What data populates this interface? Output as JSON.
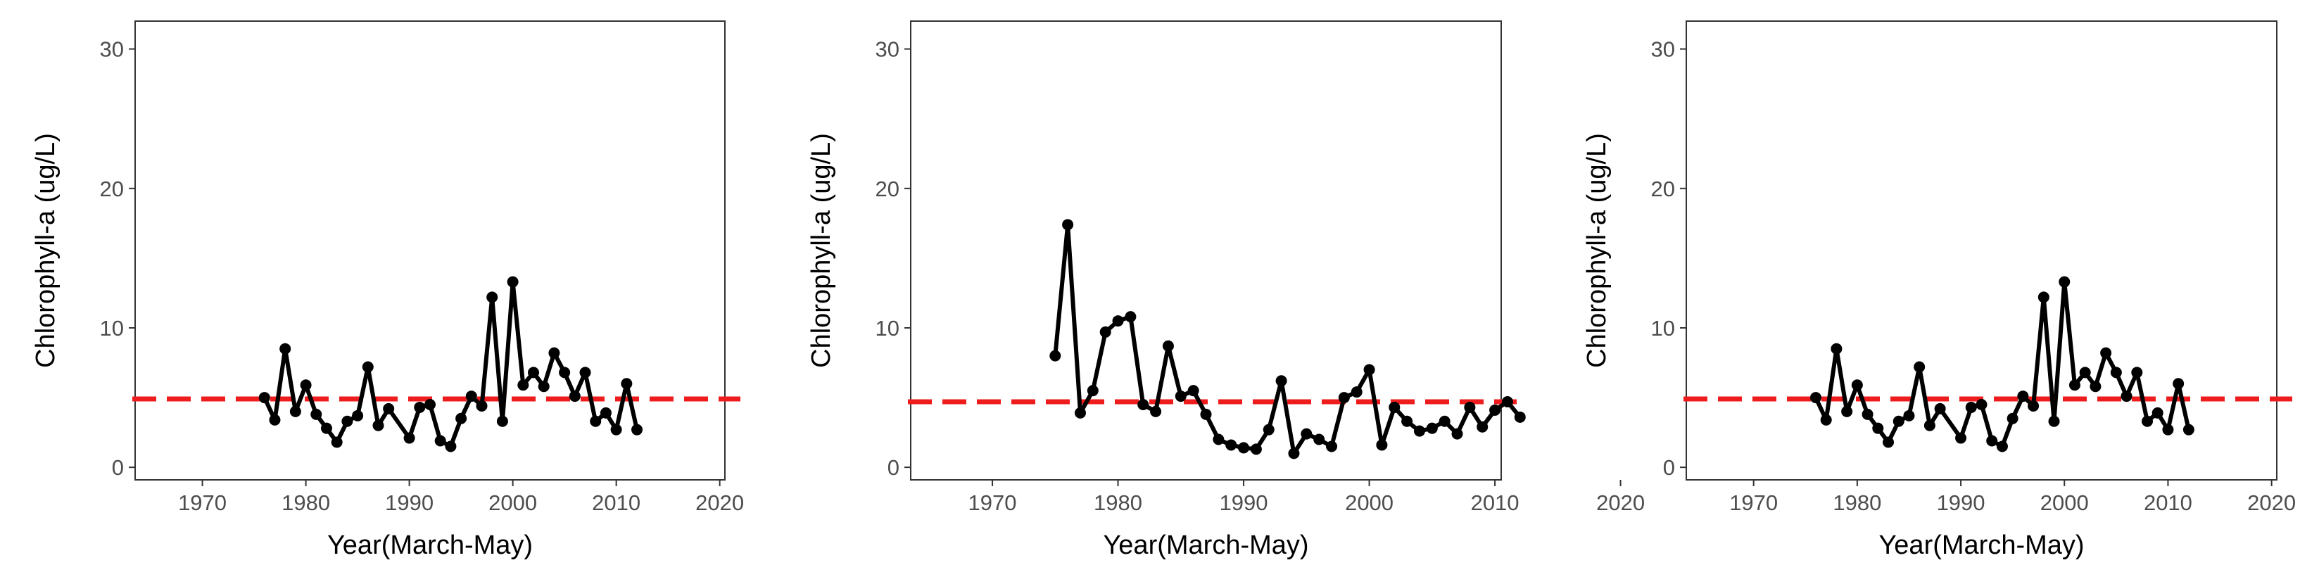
{
  "colors": {
    "series": "#000000",
    "threshold": "#ee1c1c",
    "axis_text": "#4d4d4d",
    "title_text": "#000000"
  },
  "chart_data": [
    {
      "type": "line",
      "xlabel": "Year(March-May)",
      "ylabel": "Chlorophyll-a (ug/L)",
      "xlim": [
        1963.5,
        2020.5
      ],
      "ylim": [
        -0.9,
        32
      ],
      "x_ticks": [
        1970,
        1980,
        1990,
        2000,
        2010,
        2020
      ],
      "y_ticks": [
        0,
        10,
        20,
        30
      ],
      "grid": false,
      "reference_line": 4.9,
      "series": [
        {
          "x": [
            1976,
            1977,
            1978,
            1979,
            1980,
            1981,
            1982,
            1983,
            1984,
            1985,
            1986,
            1987,
            1988,
            1990,
            1991,
            1992,
            1993,
            1994,
            1995,
            1996,
            1997,
            1998,
            1999,
            2000,
            2001,
            2002,
            2003,
            2004,
            2005,
            2006,
            2007,
            2008,
            2009,
            2010,
            2011,
            2012
          ],
          "y": [
            5.0,
            3.4,
            8.5,
            4.0,
            5.9,
            3.8,
            2.8,
            1.8,
            3.3,
            3.7,
            7.2,
            3.0,
            4.2,
            2.1,
            4.3,
            4.5,
            1.9,
            1.5,
            3.5,
            5.1,
            4.4,
            12.2,
            3.3,
            13.3,
            5.9,
            6.8,
            5.8,
            8.2,
            6.8,
            5.1,
            6.8,
            3.3,
            3.9,
            2.7,
            6.0,
            2.7
          ]
        }
      ]
    },
    {
      "type": "line",
      "xlabel": "Year(March-May)",
      "ylabel": "Chlorophyll-a (ug/L)",
      "xlim": [
        1963.5,
        2010.5
      ],
      "ylim": [
        -0.9,
        32
      ],
      "x_ticks": [
        1970,
        1980,
        1990,
        2000,
        2010,
        2020
      ],
      "y_ticks": [
        0,
        10,
        20,
        30
      ],
      "grid": false,
      "reference_line": 4.7,
      "series": [
        {
          "x": [
            1975,
            1976,
            1977,
            1978,
            1979,
            1980,
            1981,
            1982,
            1983,
            1984,
            1985,
            1986,
            1987,
            1988,
            1989,
            1990,
            1991,
            1992,
            1993,
            1994,
            1995,
            1996,
            1997,
            1998,
            1999,
            2000,
            2001,
            2002,
            2003,
            2004,
            2005,
            2006,
            2007,
            2008,
            2009,
            2010,
            2011,
            2012
          ],
          "y": [
            8.0,
            17.4,
            3.9,
            5.5,
            9.7,
            10.5,
            10.8,
            4.5,
            4.0,
            8.7,
            5.1,
            5.5,
            3.8,
            2.0,
            1.6,
            1.4,
            1.3,
            2.7,
            6.2,
            1.0,
            2.4,
            2.0,
            1.5,
            5.0,
            5.4,
            7.0,
            1.6,
            4.3,
            3.3,
            2.6,
            2.8,
            3.3,
            2.4,
            4.3,
            2.9,
            4.1,
            4.7,
            3.6
          ]
        }
      ]
    },
    {
      "type": "line",
      "xlabel": "Year(March-May)",
      "ylabel": "Chlorophyll-a (ug/L)",
      "xlim": [
        1963.5,
        2020.5
      ],
      "ylim": [
        -0.9,
        32
      ],
      "x_ticks": [
        1970,
        1980,
        1990,
        2000,
        2010,
        2020
      ],
      "y_ticks": [
        0,
        10,
        20,
        30
      ],
      "grid": false,
      "reference_line": 4.9,
      "series": [
        {
          "x": [
            1976,
            1977,
            1978,
            1979,
            1980,
            1981,
            1982,
            1983,
            1984,
            1985,
            1986,
            1987,
            1988,
            1990,
            1991,
            1992,
            1993,
            1994,
            1995,
            1996,
            1997,
            1998,
            1999,
            2000,
            2001,
            2002,
            2003,
            2004,
            2005,
            2006,
            2007,
            2008,
            2009,
            2010,
            2011,
            2012
          ],
          "y": [
            5.0,
            3.4,
            8.5,
            4.0,
            5.9,
            3.8,
            2.8,
            1.8,
            3.3,
            3.7,
            7.2,
            3.0,
            4.2,
            2.1,
            4.3,
            4.5,
            1.9,
            1.5,
            3.5,
            5.1,
            4.4,
            12.2,
            3.3,
            13.3,
            5.9,
            6.8,
            5.8,
            8.2,
            6.8,
            5.1,
            6.8,
            3.3,
            3.9,
            2.7,
            6.0,
            2.7
          ]
        }
      ]
    }
  ]
}
